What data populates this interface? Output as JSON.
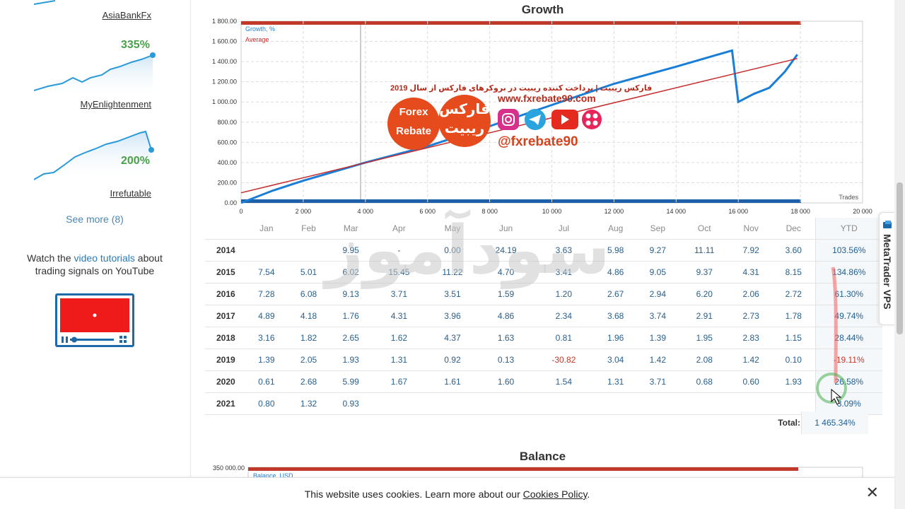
{
  "sidebar": {
    "signals": [
      {
        "name": "AsiaBankFx",
        "percent": "335%"
      },
      {
        "name": "MyEnlightenment",
        "percent": "200%"
      },
      {
        "name": "Irrefutable"
      }
    ],
    "see_more": "See more (8)",
    "watch_prefix": "Watch the ",
    "watch_link": "video tutorials",
    "watch_suffix": " about trading signals on YouTube"
  },
  "growth_chart": {
    "title": "Growth",
    "legend": [
      "Growth, %",
      "Average"
    ],
    "xlabel": "Trades",
    "y_ticks": [
      "1 800.00",
      "1 600.00",
      "1 400.00",
      "1 200.00",
      "1 000.00",
      "800.00",
      "600.00",
      "400.00",
      "200.00",
      "0.00"
    ],
    "x_ticks": [
      "0",
      "2 000",
      "4 000",
      "6 000",
      "8 000",
      "10 000",
      "12 000",
      "14 000",
      "16 000",
      "18 000",
      "20 000"
    ]
  },
  "chart_data": {
    "type": "line",
    "title": "Growth",
    "xlabel": "Trades",
    "ylabel": "",
    "xlim": [
      0,
      20000
    ],
    "ylim": [
      0,
      1800
    ],
    "series": [
      {
        "name": "Growth, %",
        "x": [
          0,
          1000,
          2000,
          4000,
          6000,
          8000,
          10000,
          12000,
          14000,
          15800,
          16000,
          16500,
          17000,
          17500,
          17900
        ],
        "y": [
          0,
          120,
          220,
          400,
          560,
          760,
          970,
          1180,
          1350,
          1510,
          1000,
          1080,
          1140,
          1300,
          1470
        ]
      },
      {
        "name": "Average",
        "x": [
          0,
          17900
        ],
        "y": [
          100,
          1430
        ]
      }
    ]
  },
  "table": {
    "headers": [
      "",
      "Jan",
      "Feb",
      "Mar",
      "Apr",
      "May",
      "Jun",
      "Jul",
      "Aug",
      "Sep",
      "Oct",
      "Nov",
      "Dec",
      "YTD"
    ],
    "rows": [
      {
        "year": "2014",
        "cells": [
          "",
          "",
          "9.95",
          "-",
          "0.00",
          "24.19",
          "3.63",
          "5.98",
          "9.27",
          "11.11",
          "7.92",
          "3.60"
        ],
        "ytd": "103.56%"
      },
      {
        "year": "2015",
        "cells": [
          "7.54",
          "5.01",
          "6.02",
          "15.45",
          "11.22",
          "4.70",
          "3.41",
          "4.86",
          "9.05",
          "9.37",
          "4.31",
          "8.15"
        ],
        "ytd": "134.86%"
      },
      {
        "year": "2016",
        "cells": [
          "7.28",
          "6.08",
          "9.13",
          "3.71",
          "3.51",
          "1.59",
          "1.20",
          "2.67",
          "2.94",
          "6.20",
          "2.06",
          "2.72"
        ],
        "ytd": "61.30%"
      },
      {
        "year": "2017",
        "cells": [
          "4.89",
          "4.18",
          "1.76",
          "4.31",
          "3.96",
          "4.86",
          "2.34",
          "3.68",
          "3.74",
          "2.91",
          "2.73",
          "1.78"
        ],
        "ytd": "49.74%"
      },
      {
        "year": "2018",
        "cells": [
          "3.16",
          "1.82",
          "2.65",
          "1.62",
          "4.37",
          "1.63",
          "0.81",
          "1.96",
          "1.39",
          "1.95",
          "2.83",
          "1.15"
        ],
        "ytd": "28.44%"
      },
      {
        "year": "2019",
        "cells": [
          "1.39",
          "2.05",
          "1.93",
          "1.31",
          "0.92",
          "0.13",
          "-30.82",
          "3.04",
          "1.42",
          "2.08",
          "1.42",
          "0.10"
        ],
        "ytd": "-19.11%"
      },
      {
        "year": "2020",
        "cells": [
          "0.61",
          "2.68",
          "5.99",
          "1.67",
          "1.61",
          "1.60",
          "1.54",
          "1.31",
          "3.71",
          "0.68",
          "0.60",
          "1.93"
        ],
        "ytd": "26.58%"
      },
      {
        "year": "2021",
        "cells": [
          "0.80",
          "1.32",
          "0.93",
          "",
          "",
          "",
          "",
          "",
          "",
          "",
          "",
          ""
        ],
        "ytd": "3.09%"
      }
    ],
    "total_label": "Total:",
    "total_value": "1 465.34%"
  },
  "balance_chart": {
    "title": "Balance",
    "y_tick_top": "350 000.00",
    "legend": "Balance, USD"
  },
  "overlay": {
    "watermark": "سودآموز",
    "promo_line": "فارکس ریبیت | برداخت کننده ریبیت در بروکرهای فارکس از سال 2019",
    "site": "www.fxrebate90.com",
    "handle": "@fxrebate90",
    "bubble_en_1": "Forex",
    "bubble_en_2": "Rebate",
    "bubble_fa_1": "فارکس",
    "bubble_fa_2": "ریبیت"
  },
  "vps_tab": "MetaTrader VPS",
  "cookie": {
    "text_prefix": "This website uses cookies. Learn more about our ",
    "link": "Cookies Policy",
    "text_suffix": ".",
    "close": "✕"
  },
  "colors": {
    "growth": "#1a7ed6",
    "average": "#c62b2b",
    "positive_pct": "#4aa04a"
  }
}
